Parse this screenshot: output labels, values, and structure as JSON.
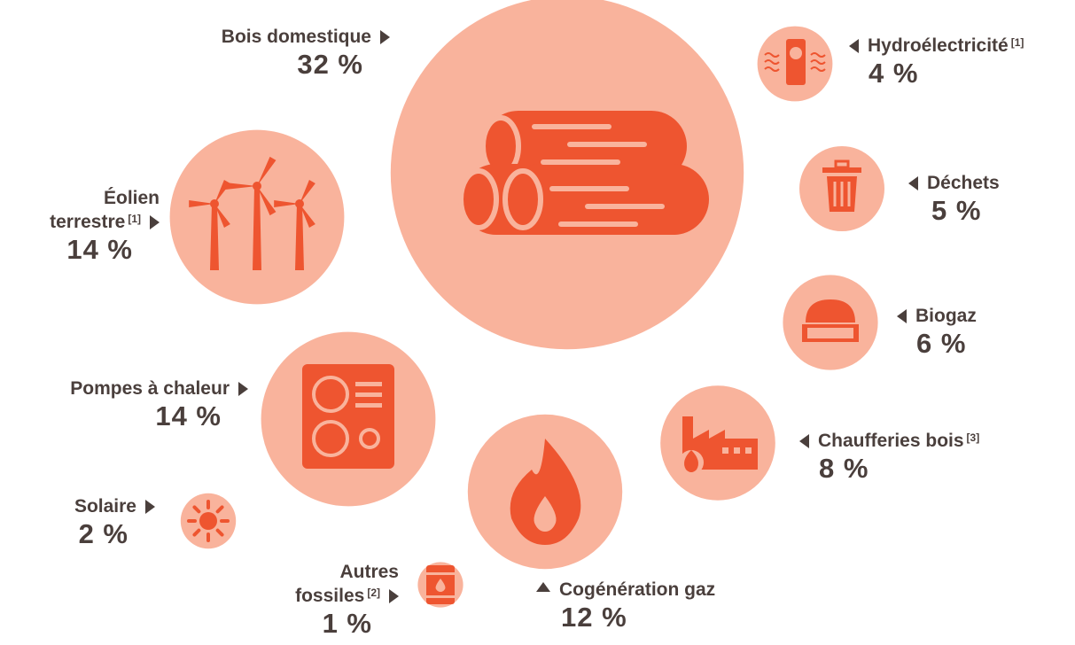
{
  "chart_data": {
    "type": "bubble",
    "categories": [
      "Bois domestique",
      "Hydroélectricité",
      "Déchets",
      "Biogaz",
      "Chaufferies bois",
      "Cogénération gaz",
      "Autres fossiles",
      "Pompes à chaleur",
      "Solaire",
      "Éolien terrestre"
    ],
    "category_notes": [
      null,
      "[1]",
      null,
      null,
      "[3]",
      null,
      "[2]",
      null,
      null,
      "[1]"
    ],
    "values": [
      32,
      4,
      5,
      6,
      8,
      12,
      1,
      14,
      2,
      14
    ],
    "value_labels": [
      "32 %",
      "4 %",
      "5 %",
      "6 %",
      "8 %",
      "12 %",
      "1 %",
      "14 %",
      "2 %",
      "14 %"
    ],
    "color": "#f9b39c"
  }
}
